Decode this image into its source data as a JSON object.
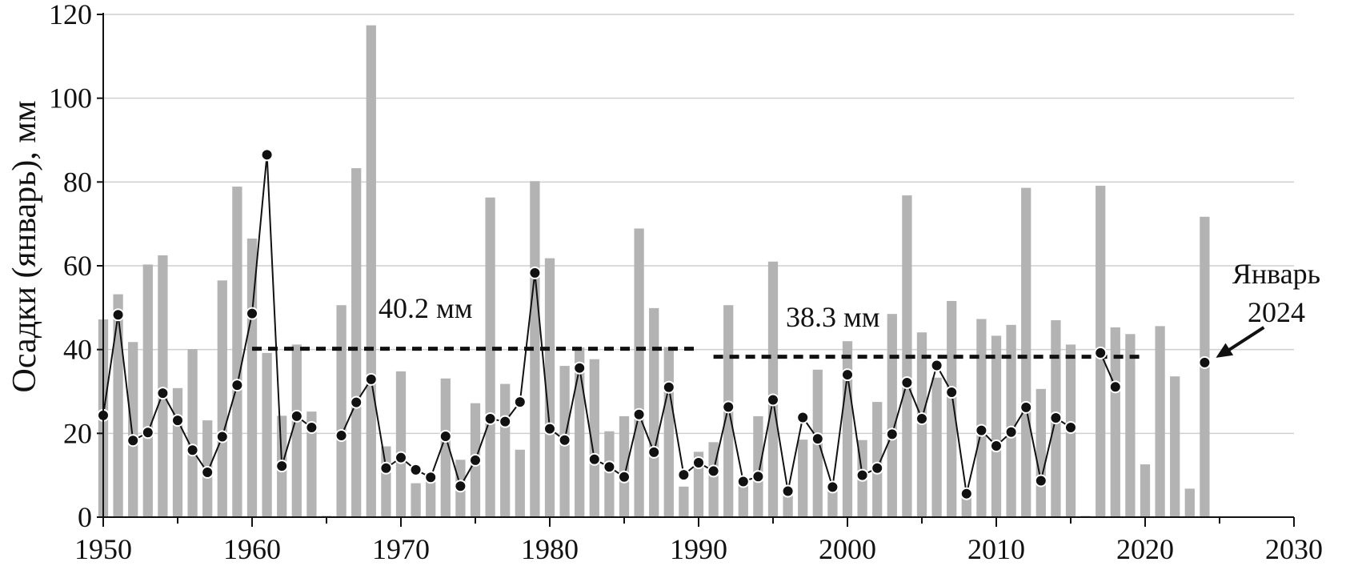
{
  "chart_data": {
    "type": "bar",
    "ylabel": "Осадки (январь), мм",
    "xlabel": "",
    "xlim": [
      1950,
      2030
    ],
    "ylim": [
      0,
      120
    ],
    "x_ticks": [
      1950,
      1960,
      1970,
      1980,
      1990,
      2000,
      2010,
      2020,
      2030
    ],
    "y_ticks": [
      0,
      20,
      40,
      60,
      80,
      100,
      120
    ],
    "grid": true,
    "colors": {
      "bars": "#b3b3b3",
      "line": "#111111",
      "points": "#111111",
      "mean": "#111111",
      "grid": "#cfcfcf"
    },
    "series": [
      {
        "kind": "bar",
        "x": [
          1950,
          1951,
          1952,
          1953,
          1954,
          1955,
          1956,
          1957,
          1958,
          1959,
          1960,
          1961,
          1962,
          1963,
          1964,
          1965,
          1966,
          1967,
          1968,
          1969,
          1970,
          1971,
          1972,
          1973,
          1974,
          1975,
          1976,
          1977,
          1978,
          1979,
          1980,
          1981,
          1982,
          1983,
          1984,
          1985,
          1986,
          1987,
          1988,
          1989,
          1990,
          1991,
          1992,
          1993,
          1994,
          1995,
          1996,
          1997,
          1998,
          1999,
          2000,
          2001,
          2002,
          2003,
          2004,
          2005,
          2006,
          2007,
          2008,
          2009,
          2010,
          2011,
          2012,
          2013,
          2014,
          2015,
          2016,
          2017,
          2018,
          2019,
          2020,
          2021,
          2022,
          2023,
          2024
        ],
        "values": [
          47.2,
          53.2,
          41.8,
          60.3,
          62.5,
          30.8,
          40.1,
          23.1,
          56.5,
          78.9,
          66.5,
          39.2,
          24.2,
          41.2,
          25.2,
          0.3,
          50.6,
          83.3,
          117.4,
          16.9,
          34.8,
          8.1,
          9.2,
          33.1,
          13.7,
          27.2,
          76.3,
          31.8,
          16.1,
          80.2,
          61.8,
          36.1,
          40.5,
          37.7,
          20.5,
          24.1,
          68.9,
          49.9,
          40.6,
          7.3,
          15.6,
          17.9,
          50.6,
          8.2,
          24.1,
          61.0,
          6.5,
          18.5,
          35.2,
          7.1,
          42.0,
          18.4,
          27.5,
          48.5,
          76.8,
          44.1,
          33.3,
          51.6,
          5.0,
          47.3,
          43.3,
          45.9,
          78.6,
          30.6,
          47.0,
          41.2,
          0.3,
          79.1,
          45.3,
          43.7,
          12.6,
          45.6,
          33.6,
          6.8,
          71.7
        ]
      },
      {
        "kind": "line",
        "x": [
          1950,
          1951,
          1952,
          1953,
          1954,
          1955,
          1956,
          1957,
          1958,
          1959,
          1960,
          1961,
          1962,
          1963,
          1964
        ],
        "values": [
          24.3,
          48.3,
          18.3,
          20.2,
          29.6,
          23.1,
          16.0,
          10.7,
          19.2,
          31.5,
          48.6,
          86.5,
          12.2,
          24.1,
          21.4
        ]
      },
      {
        "kind": "line",
        "x": [
          1966,
          1967,
          1968,
          1969,
          1970,
          1971,
          1972,
          1973,
          1974,
          1975,
          1976,
          1977,
          1978,
          1979,
          1980,
          1981,
          1982,
          1983,
          1984,
          1985,
          1986,
          1987,
          1988,
          1989,
          1990,
          1991,
          1992,
          1993,
          1994,
          1995,
          1996,
          1997,
          1998,
          1999,
          2000,
          2001,
          2002,
          2003,
          2004,
          2005,
          2006,
          2007,
          2008,
          2009,
          2010,
          2011,
          2012,
          2013,
          2014,
          2015
        ],
        "values": [
          19.5,
          27.4,
          32.9,
          11.7,
          14.2,
          11.3,
          9.5,
          19.3,
          7.4,
          13.6,
          23.5,
          22.8,
          27.5,
          58.3,
          21.1,
          18.4,
          35.6,
          13.8,
          12.0,
          9.6,
          24.5,
          15.5,
          31.0,
          10.1,
          13.0,
          11.0,
          26.3,
          8.5,
          9.7,
          28.0,
          6.2,
          23.8,
          18.7,
          7.2,
          34.0,
          10.0,
          11.7,
          19.8,
          32.1,
          23.5,
          36.2,
          29.8,
          5.6,
          20.7,
          17.0,
          20.3,
          26.2,
          8.7,
          23.7,
          21.4
        ]
      },
      {
        "kind": "line",
        "x": [
          2017,
          2018
        ],
        "values": [
          39.2,
          31.1
        ]
      },
      {
        "kind": "point",
        "x": [
          2024
        ],
        "values": [
          36.9
        ]
      }
    ],
    "reference_lines": [
      {
        "label": "40.2 мм",
        "value": 40.2,
        "x_start": 1960,
        "x_end": 1990
      },
      {
        "label": "38.3 мм",
        "value": 38.3,
        "x_start": 1991,
        "x_end": 2020
      }
    ],
    "annotations": [
      {
        "text_line1": "Январь",
        "text_line2": "2024",
        "target_x": 2024,
        "target_y": 36.9
      }
    ]
  }
}
